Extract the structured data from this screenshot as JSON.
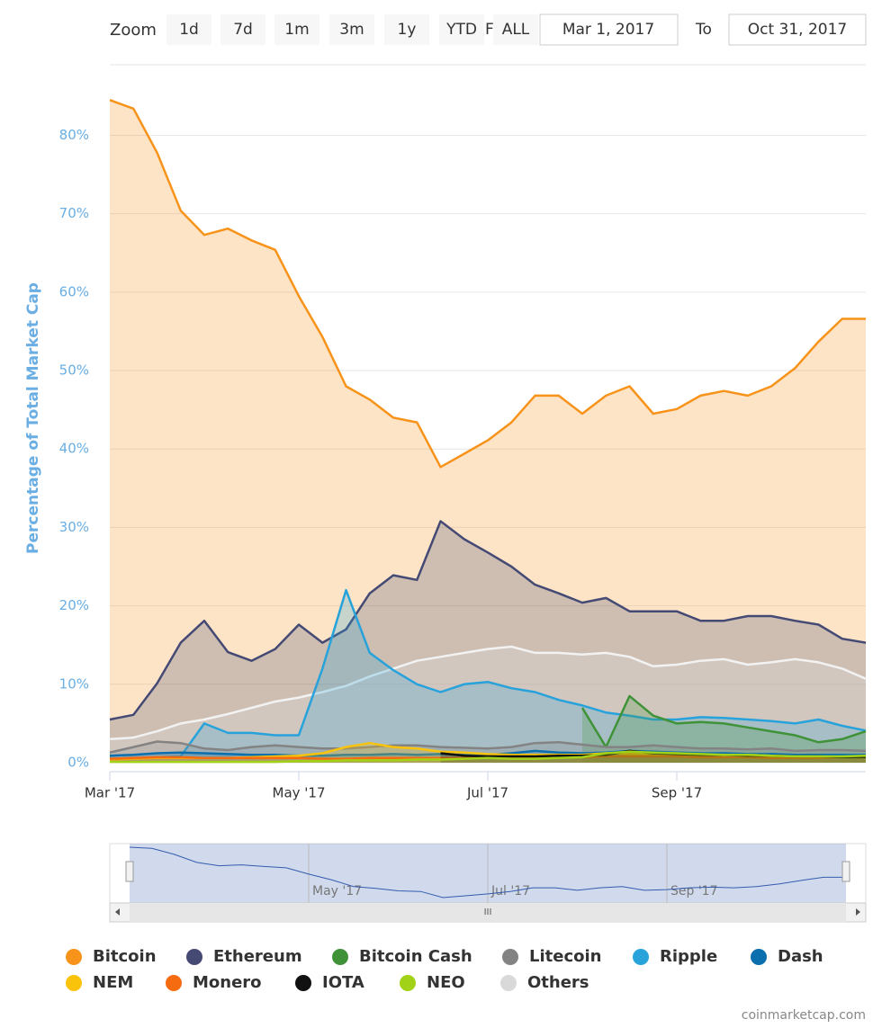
{
  "range_selector": {
    "zoom_label": "Zoom",
    "buttons": [
      "1d",
      "7d",
      "1m",
      "3m",
      "1y",
      "YTD",
      "ALL"
    ],
    "from_label": "From",
    "from": "Mar 1, 2017",
    "to_label": "To",
    "to": "Oct 31, 2017"
  },
  "credit": "coinmarketcap.com",
  "chart_data": {
    "type": "area",
    "y_axis_label": "Percentage of Total Market Cap",
    "categories": [
      "Mar '17",
      null,
      null,
      null,
      null,
      null,
      null,
      null,
      "May '17",
      null,
      null,
      null,
      null,
      null,
      null,
      null,
      "Jul '17",
      null,
      null,
      null,
      null,
      null,
      null,
      null,
      "Sep '17",
      null,
      null,
      null,
      null,
      null,
      null,
      null,
      null
    ],
    "ylim": [
      0,
      89
    ],
    "yticks": [
      {
        "value": 0,
        "label": "0%"
      },
      {
        "value": 10,
        "label": "10%"
      },
      {
        "value": 20,
        "label": "20%"
      },
      {
        "value": 30,
        "label": "30%"
      },
      {
        "value": 40,
        "label": "40%"
      },
      {
        "value": 50,
        "label": "50%"
      },
      {
        "value": 60,
        "label": "60%"
      },
      {
        "value": 70,
        "label": "70%"
      },
      {
        "value": 80,
        "label": "80%"
      }
    ],
    "grid": true,
    "series": [
      {
        "name": "Bitcoin",
        "color": "#f7931a",
        "values": [
          84.5,
          83.4,
          77.8,
          70.4,
          67.3,
          68.1,
          66.6,
          65.4,
          59.5,
          54.3,
          48.0,
          46.3,
          44.0,
          43.4,
          37.7,
          39.4,
          41.1,
          43.4,
          46.8,
          46.8,
          44.5,
          46.8,
          48.0,
          44.5,
          45.1,
          46.8,
          47.4,
          46.8,
          48.0,
          50.3,
          53.7,
          56.6,
          56.6
        ]
      },
      {
        "name": "Ethereum",
        "color": "#454a75",
        "values": [
          5.5,
          6.1,
          10.1,
          15.3,
          18.1,
          14.1,
          13.0,
          14.5,
          17.6,
          15.3,
          17.0,
          21.6,
          23.9,
          23.3,
          30.8,
          28.5,
          26.8,
          25.0,
          22.7,
          21.6,
          20.4,
          21.0,
          19.3,
          19.3,
          19.3,
          18.1,
          18.1,
          18.7,
          18.7,
          18.1,
          17.6,
          15.8,
          15.3
        ]
      },
      {
        "name": "Bitcoin Cash",
        "color": "#3f9238",
        "values": [
          null,
          null,
          null,
          null,
          null,
          null,
          null,
          null,
          null,
          null,
          null,
          null,
          null,
          null,
          null,
          null,
          null,
          null,
          null,
          null,
          7.0,
          2.0,
          8.5,
          6.0,
          5.0,
          5.2,
          5.0,
          4.5,
          4.0,
          3.5,
          2.6,
          3.0,
          4.0
        ]
      },
      {
        "name": "Litecoin",
        "color": "#838383",
        "values": [
          1.3,
          2.0,
          2.7,
          2.5,
          1.8,
          1.6,
          2.0,
          2.2,
          2.0,
          1.8,
          1.8,
          2.0,
          2.2,
          2.2,
          2.0,
          1.9,
          1.8,
          2.0,
          2.5,
          2.6,
          2.3,
          2.0,
          2.0,
          2.2,
          2.0,
          1.8,
          1.8,
          1.7,
          1.8,
          1.5,
          1.6,
          1.6,
          1.5
        ]
      },
      {
        "name": "Ripple",
        "color": "#27a2db",
        "values": [
          0.5,
          0.6,
          0.7,
          0.8,
          5.0,
          3.8,
          3.8,
          3.5,
          3.5,
          12.0,
          22.0,
          14.0,
          11.8,
          10.0,
          9.0,
          10.0,
          10.3,
          9.5,
          9.0,
          8.0,
          7.3,
          6.4,
          6.0,
          5.5,
          5.5,
          5.8,
          5.7,
          5.5,
          5.3,
          5.0,
          5.5,
          4.7,
          4.1
        ]
      },
      {
        "name": "Dash",
        "color": "#0c6fad",
        "values": [
          0.9,
          1.0,
          1.2,
          1.3,
          1.2,
          1.1,
          1.0,
          1.0,
          0.9,
          0.9,
          1.0,
          1.0,
          1.1,
          1.0,
          1.1,
          1.0,
          1.0,
          1.2,
          1.5,
          1.3,
          1.2,
          1.3,
          1.5,
          1.4,
          1.3,
          1.2,
          1.2,
          1.1,
          1.1,
          1.0,
          1.0,
          1.0,
          1.0
        ]
      },
      {
        "name": "NEM",
        "color": "#fac30b",
        "values": [
          0.4,
          0.5,
          0.6,
          0.6,
          0.6,
          0.6,
          0.7,
          0.8,
          0.9,
          1.2,
          2.0,
          2.5,
          2.0,
          1.8,
          1.4,
          1.3,
          1.1,
          1.0,
          1.0,
          1.0,
          1.0,
          1.2,
          1.1,
          1.1,
          1.1,
          1.0,
          1.0,
          1.0,
          0.9,
          0.8,
          0.8,
          0.7,
          0.7
        ]
      },
      {
        "name": "Monero",
        "color": "#f66b10",
        "values": [
          0.5,
          0.6,
          0.7,
          0.7,
          0.6,
          0.6,
          0.6,
          0.6,
          0.6,
          0.5,
          0.5,
          0.6,
          0.6,
          0.6,
          0.6,
          0.6,
          0.6,
          0.6,
          0.7,
          0.7,
          0.7,
          0.8,
          0.8,
          0.8,
          0.8,
          0.7,
          0.7,
          0.7,
          0.6,
          0.6,
          0.6,
          0.7,
          0.9
        ]
      },
      {
        "name": "IOTA",
        "color": "#111111",
        "values": [
          null,
          null,
          null,
          null,
          null,
          null,
          null,
          null,
          null,
          null,
          null,
          null,
          null,
          null,
          1.2,
          0.9,
          0.8,
          0.8,
          0.8,
          0.9,
          0.9,
          1.0,
          1.5,
          1.2,
          1.1,
          1.0,
          1.0,
          0.9,
          0.9,
          0.8,
          0.8,
          0.7,
          0.7
        ]
      },
      {
        "name": "NEO",
        "color": "#a2d217",
        "values": [
          0.1,
          0.1,
          0.1,
          0.1,
          0.1,
          0.1,
          0.1,
          0.1,
          0.2,
          0.2,
          0.3,
          0.3,
          0.3,
          0.4,
          0.4,
          0.5,
          0.6,
          0.5,
          0.5,
          0.6,
          0.7,
          1.2,
          1.4,
          1.3,
          1.2,
          1.1,
          1.0,
          1.0,
          0.9,
          0.8,
          0.8,
          0.8,
          0.9
        ]
      },
      {
        "name": "Others",
        "color": "#d9d9d9",
        "values": [
          3.0,
          3.2,
          4.0,
          5.0,
          5.5,
          6.2,
          7.0,
          7.8,
          8.3,
          9.0,
          9.8,
          11.0,
          12.0,
          13.0,
          13.5,
          14.0,
          14.5,
          14.8,
          14.0,
          14.0,
          13.8,
          14.0,
          13.5,
          12.3,
          12.5,
          13.0,
          13.2,
          12.5,
          12.8,
          13.2,
          12.8,
          12.0,
          10.7
        ]
      }
    ]
  }
}
